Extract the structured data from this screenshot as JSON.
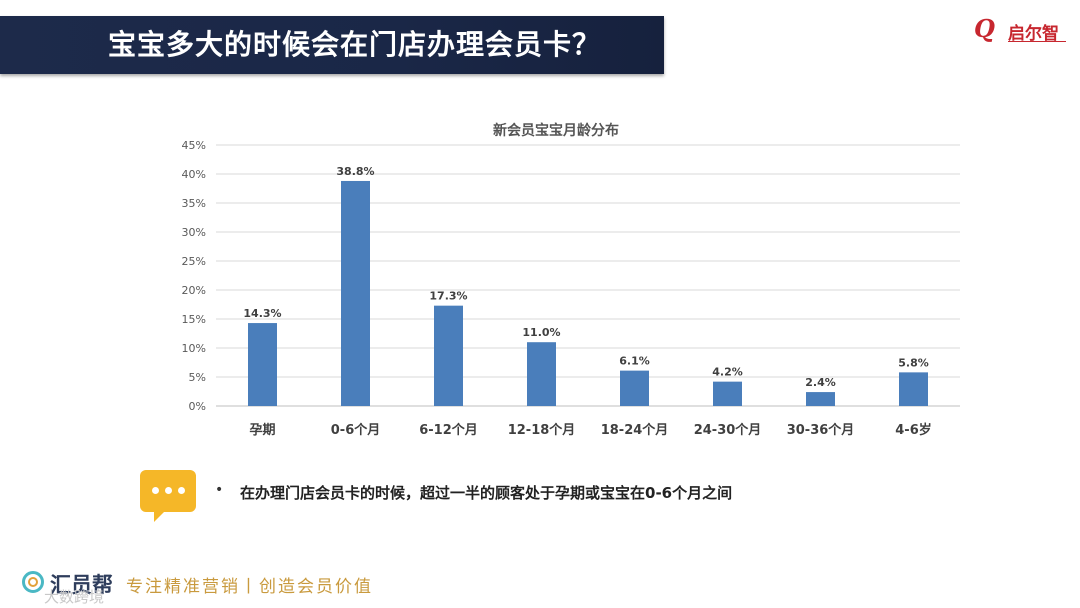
{
  "header": {
    "title": "宝宝多大的时候会在门店办理会员卡？",
    "logo_mark": "Q",
    "logo_brand": "启尔智"
  },
  "chart_data": {
    "type": "bar",
    "title": "新会员宝宝月龄分布",
    "categories": [
      "孕期",
      "0-6个月",
      "6-12个月",
      "12-18个月",
      "18-24个月",
      "24-30个月",
      "30-36个月",
      "4-6岁"
    ],
    "values": [
      14.3,
      38.8,
      17.3,
      11.0,
      6.1,
      4.2,
      2.4,
      5.8
    ],
    "value_labels": [
      "14.3%",
      "38.8%",
      "17.3%",
      "11.0%",
      "6.1%",
      "4.2%",
      "2.4%",
      "5.8%"
    ],
    "y_ticks": [
      "0%",
      "5%",
      "10%",
      "15%",
      "20%",
      "25%",
      "30%",
      "35%",
      "40%",
      "45%"
    ],
    "ylim": [
      0,
      45
    ],
    "grid": true,
    "bar_color": "#4a7ebb"
  },
  "note": {
    "bullet": "•",
    "text": "在办理门店会员卡的时候，超过一半的顾客处于孕期或宝宝在0-6个月之间"
  },
  "footer": {
    "brand": "汇员帮",
    "slogan": "专注精准营销丨创造会员价值",
    "caption": "大数跨境"
  }
}
